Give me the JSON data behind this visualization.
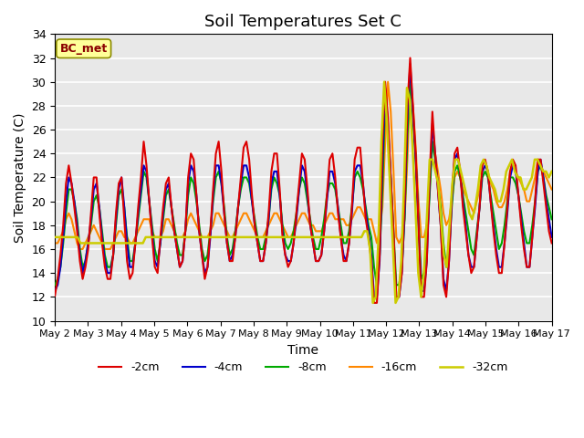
{
  "title": "Soil Temperatures Set C",
  "xlabel": "Time",
  "ylabel": "Soil Temperature (C)",
  "ylim": [
    10,
    34
  ],
  "background_color": "#e8e8e8",
  "label_text": "BC_met",
  "label_bg": "#ffff99",
  "label_border": "#8B8B00",
  "label_text_color": "#8B0000",
  "series": {
    "-2cm": {
      "color": "#dd0000",
      "lw": 1.5
    },
    "-4cm": {
      "color": "#0000cc",
      "lw": 1.5
    },
    "-8cm": {
      "color": "#00aa00",
      "lw": 1.5
    },
    "-16cm": {
      "color": "#ff8800",
      "lw": 1.5
    },
    "-32cm": {
      "color": "#cccc00",
      "lw": 1.8
    }
  },
  "x_labels": [
    "May 2",
    "May 3",
    "May 4",
    "May 5",
    "May 6",
    "May 7",
    "May 8",
    "May 9",
    "May 10",
    "May 11",
    "May 12",
    "May 13",
    "May 14",
    "May 15",
    "May 16",
    "May 17"
  ],
  "x_ticks": [
    0,
    12,
    24,
    36,
    48,
    60,
    72,
    84,
    96,
    108,
    120,
    132,
    144,
    156,
    168,
    180
  ],
  "data_2cm": [
    12.1,
    13.5,
    15.5,
    18.0,
    21.5,
    23.0,
    21.5,
    19.5,
    17.5,
    15.0,
    13.5,
    14.5,
    16.0,
    19.0,
    22.0,
    22.0,
    19.0,
    16.5,
    14.5,
    13.5,
    13.5,
    15.5,
    19.0,
    21.5,
    22.0,
    18.5,
    15.0,
    13.5,
    14.0,
    16.5,
    19.5,
    22.0,
    25.0,
    23.0,
    20.0,
    17.0,
    14.5,
    14.0,
    17.0,
    19.5,
    21.5,
    22.0,
    19.5,
    17.5,
    16.0,
    14.5,
    15.0,
    17.5,
    22.0,
    24.0,
    23.5,
    20.5,
    17.5,
    15.5,
    13.5,
    14.5,
    17.5,
    21.0,
    24.0,
    25.0,
    22.5,
    19.0,
    16.5,
    15.0,
    15.0,
    17.0,
    19.5,
    22.0,
    24.5,
    25.0,
    23.5,
    20.5,
    18.0,
    16.5,
    15.0,
    15.0,
    16.5,
    19.0,
    22.5,
    24.0,
    24.0,
    21.0,
    17.0,
    15.5,
    14.5,
    15.0,
    16.5,
    19.0,
    21.5,
    24.0,
    23.5,
    21.0,
    18.0,
    16.5,
    15.0,
    15.0,
    15.5,
    17.5,
    20.5,
    23.5,
    24.0,
    22.0,
    19.0,
    17.0,
    15.0,
    15.0,
    16.5,
    19.5,
    23.5,
    24.5,
    24.5,
    21.5,
    18.5,
    17.0,
    15.0,
    11.5,
    11.5,
    15.5,
    25.0,
    30.0,
    27.0,
    22.0,
    17.5,
    12.0,
    12.0,
    14.0,
    20.0,
    28.0,
    32.0,
    28.0,
    24.0,
    18.0,
    12.0,
    12.0,
    15.0,
    22.0,
    27.5,
    24.0,
    21.0,
    18.0,
    13.0,
    12.0,
    15.0,
    20.5,
    24.0,
    24.5,
    22.5,
    19.5,
    17.5,
    15.5,
    14.0,
    14.5,
    17.0,
    19.5,
    23.0,
    23.5,
    22.5,
    20.0,
    17.5,
    15.5,
    14.0,
    14.0,
    16.5,
    19.5,
    22.5,
    23.5,
    23.0,
    20.5,
    18.0,
    16.0,
    14.5,
    14.5,
    17.0,
    20.0,
    23.5,
    23.5,
    21.5,
    19.5,
    17.5,
    16.5
  ],
  "data_4cm": [
    12.5,
    13.0,
    14.5,
    17.0,
    20.0,
    22.0,
    21.5,
    20.0,
    18.0,
    15.5,
    14.0,
    15.0,
    16.5,
    18.5,
    21.0,
    21.5,
    19.5,
    17.0,
    15.0,
    14.0,
    14.0,
    15.5,
    18.5,
    21.0,
    22.0,
    19.5,
    16.5,
    14.5,
    14.5,
    16.5,
    19.0,
    21.0,
    23.0,
    22.5,
    20.0,
    17.5,
    15.0,
    14.5,
    16.5,
    19.0,
    21.0,
    21.5,
    19.5,
    17.5,
    16.0,
    14.5,
    15.0,
    17.5,
    21.5,
    23.0,
    22.5,
    20.5,
    17.5,
    15.5,
    14.0,
    14.5,
    17.0,
    20.5,
    23.0,
    23.0,
    21.5,
    19.0,
    16.5,
    15.0,
    15.5,
    17.0,
    19.5,
    21.5,
    23.0,
    23.0,
    22.0,
    20.0,
    18.0,
    16.5,
    15.0,
    15.0,
    16.5,
    18.5,
    21.5,
    22.5,
    22.5,
    20.5,
    17.5,
    15.5,
    15.0,
    15.0,
    16.5,
    18.5,
    21.0,
    23.0,
    22.5,
    20.5,
    18.0,
    16.5,
    15.0,
    15.0,
    15.5,
    17.5,
    20.0,
    22.5,
    22.5,
    21.5,
    19.5,
    17.0,
    15.5,
    15.0,
    16.5,
    19.0,
    22.5,
    23.0,
    23.0,
    21.5,
    19.0,
    17.5,
    15.5,
    12.0,
    12.0,
    15.0,
    23.0,
    29.5,
    26.5,
    22.0,
    17.0,
    12.0,
    12.0,
    14.0,
    19.0,
    27.0,
    31.5,
    27.5,
    23.5,
    18.0,
    12.5,
    12.5,
    15.0,
    21.5,
    26.5,
    24.0,
    21.0,
    18.0,
    13.5,
    12.5,
    15.0,
    20.0,
    23.5,
    24.0,
    22.5,
    20.0,
    18.0,
    15.5,
    14.5,
    14.5,
    17.0,
    19.5,
    22.5,
    23.0,
    22.5,
    20.0,
    18.0,
    16.0,
    14.5,
    14.5,
    16.5,
    19.0,
    22.0,
    23.0,
    22.5,
    20.5,
    18.5,
    16.5,
    14.5,
    14.5,
    17.0,
    19.5,
    22.5,
    23.5,
    22.0,
    20.0,
    18.5,
    17.0
  ],
  "data_8cm": [
    13.0,
    13.5,
    14.5,
    16.5,
    19.0,
    21.0,
    21.0,
    20.0,
    18.5,
    16.0,
    14.5,
    15.0,
    16.5,
    18.0,
    20.0,
    20.5,
    19.5,
    17.5,
    15.5,
    14.5,
    14.5,
    15.5,
    18.0,
    20.5,
    21.0,
    19.5,
    17.0,
    15.0,
    15.0,
    16.5,
    18.5,
    20.5,
    22.5,
    22.0,
    20.0,
    18.0,
    16.0,
    15.0,
    16.5,
    18.5,
    20.5,
    21.0,
    19.5,
    18.0,
    16.5,
    15.5,
    15.5,
    17.5,
    20.5,
    22.0,
    21.5,
    20.0,
    18.0,
    16.0,
    15.0,
    15.5,
    17.5,
    20.0,
    22.0,
    22.5,
    21.5,
    19.5,
    17.0,
    15.5,
    16.0,
    17.5,
    19.5,
    21.0,
    22.0,
    22.0,
    21.5,
    20.0,
    18.5,
    17.0,
    16.0,
    16.0,
    17.0,
    18.5,
    21.0,
    22.0,
    21.5,
    20.5,
    18.0,
    16.5,
    16.0,
    16.5,
    17.5,
    19.0,
    21.0,
    22.0,
    21.5,
    20.0,
    18.5,
    17.0,
    16.0,
    16.0,
    17.0,
    18.5,
    20.5,
    21.5,
    21.5,
    21.0,
    19.5,
    18.0,
    16.5,
    16.5,
    17.5,
    19.5,
    22.0,
    22.5,
    22.0,
    21.0,
    19.5,
    18.0,
    17.0,
    14.5,
    13.0,
    15.5,
    21.0,
    28.5,
    26.0,
    22.0,
    17.5,
    13.0,
    13.0,
    14.5,
    18.5,
    25.5,
    30.5,
    27.0,
    23.5,
    18.5,
    13.5,
    14.0,
    16.5,
    20.5,
    25.0,
    23.5,
    21.5,
    19.5,
    16.5,
    14.5,
    16.0,
    19.5,
    22.5,
    23.0,
    22.0,
    20.5,
    19.0,
    17.5,
    16.0,
    15.5,
    17.5,
    19.5,
    22.0,
    22.5,
    22.0,
    20.5,
    19.0,
    17.5,
    16.0,
    16.5,
    18.0,
    20.0,
    22.0,
    22.0,
    21.5,
    20.5,
    19.0,
    17.5,
    16.5,
    16.5,
    18.0,
    20.0,
    22.5,
    23.0,
    22.0,
    20.5,
    19.5,
    18.5
  ],
  "data_16cm": [
    16.5,
    16.5,
    17.0,
    17.5,
    18.5,
    19.0,
    18.5,
    17.5,
    16.5,
    16.0,
    16.0,
    16.5,
    17.0,
    17.5,
    18.0,
    17.5,
    17.0,
    16.5,
    16.0,
    16.0,
    16.0,
    16.5,
    17.0,
    17.5,
    17.5,
    17.0,
    17.0,
    16.5,
    16.5,
    17.0,
    17.5,
    18.0,
    18.5,
    18.5,
    18.5,
    17.5,
    17.0,
    17.0,
    17.0,
    17.5,
    18.5,
    18.5,
    18.0,
    17.5,
    17.0,
    17.0,
    17.0,
    17.5,
    18.5,
    19.0,
    18.5,
    18.0,
    17.5,
    17.0,
    17.0,
    17.0,
    17.5,
    18.0,
    19.0,
    19.0,
    18.5,
    18.0,
    17.5,
    17.0,
    17.0,
    17.5,
    18.0,
    18.5,
    19.0,
    19.0,
    18.5,
    18.0,
    17.5,
    17.0,
    17.0,
    17.0,
    17.5,
    18.0,
    18.5,
    19.0,
    19.0,
    18.5,
    18.0,
    17.5,
    17.0,
    17.0,
    17.5,
    18.0,
    18.5,
    19.0,
    19.0,
    18.5,
    18.0,
    18.0,
    17.5,
    17.5,
    17.5,
    18.0,
    18.5,
    19.0,
    19.0,
    18.5,
    18.5,
    18.5,
    18.5,
    18.0,
    18.0,
    18.5,
    19.0,
    19.5,
    19.5,
    19.0,
    18.5,
    18.5,
    18.5,
    17.5,
    16.5,
    17.5,
    19.5,
    25.0,
    30.0,
    27.5,
    22.5,
    17.0,
    16.5,
    17.0,
    18.5,
    23.5,
    30.0,
    28.0,
    24.5,
    20.0,
    17.0,
    17.0,
    18.0,
    21.0,
    25.0,
    24.0,
    22.5,
    21.0,
    19.0,
    18.0,
    18.5,
    20.0,
    22.0,
    22.5,
    22.0,
    21.0,
    20.5,
    20.0,
    19.5,
    19.0,
    20.0,
    21.0,
    22.5,
    23.0,
    22.5,
    21.5,
    21.0,
    20.0,
    19.5,
    19.5,
    20.0,
    21.0,
    22.5,
    23.0,
    22.5,
    22.0,
    21.5,
    21.0,
    20.0,
    20.0,
    21.0,
    22.0,
    23.5,
    23.0,
    22.5,
    22.0,
    21.5,
    21.0
  ],
  "data_32cm": [
    17.0,
    17.0,
    17.0,
    17.0,
    17.0,
    17.0,
    17.0,
    17.0,
    17.0,
    16.5,
    16.5,
    16.5,
    16.5,
    16.5,
    16.5,
    16.5,
    16.5,
    16.5,
    16.5,
    16.5,
    16.5,
    16.5,
    16.5,
    16.5,
    16.5,
    16.5,
    16.5,
    16.5,
    16.5,
    16.5,
    16.5,
    16.5,
    17.0,
    17.0,
    17.0,
    17.0,
    17.0,
    17.0,
    17.0,
    17.0,
    17.0,
    17.0,
    17.0,
    17.0,
    17.0,
    17.0,
    17.0,
    17.0,
    17.0,
    17.0,
    17.0,
    17.0,
    17.0,
    17.0,
    17.0,
    17.0,
    17.0,
    17.0,
    17.0,
    17.0,
    17.0,
    17.0,
    17.0,
    17.0,
    17.0,
    17.0,
    17.0,
    17.0,
    17.0,
    17.0,
    17.0,
    17.0,
    17.0,
    17.0,
    17.0,
    17.0,
    17.0,
    17.0,
    17.0,
    17.0,
    17.0,
    17.0,
    17.0,
    17.0,
    17.0,
    17.0,
    17.0,
    17.0,
    17.0,
    17.0,
    17.0,
    17.0,
    17.0,
    17.0,
    17.0,
    17.0,
    17.0,
    17.0,
    17.0,
    17.0,
    17.0,
    17.0,
    17.0,
    17.0,
    17.0,
    17.0,
    17.0,
    17.0,
    17.0,
    17.5,
    17.5,
    16.0,
    11.5,
    12.0,
    17.0,
    25.0,
    30.0,
    26.5,
    21.5,
    16.5,
    11.5,
    12.0,
    15.0,
    21.5,
    29.5,
    28.5,
    24.5,
    19.5,
    14.0,
    12.0,
    14.0,
    18.5,
    23.5,
    23.5,
    22.5,
    21.5,
    18.5,
    15.5,
    14.5,
    18.0,
    21.5,
    23.5,
    23.5,
    22.5,
    21.5,
    20.5,
    19.0,
    18.5,
    19.5,
    21.0,
    23.0,
    23.5,
    23.0,
    22.0,
    21.5,
    21.0,
    20.0,
    20.0,
    21.0,
    22.5,
    23.0,
    23.5,
    22.5,
    22.0,
    22.0,
    21.0,
    21.0,
    21.5,
    22.0,
    23.5,
    23.5,
    23.0,
    22.5,
    22.5,
    22.0,
    22.5
  ]
}
